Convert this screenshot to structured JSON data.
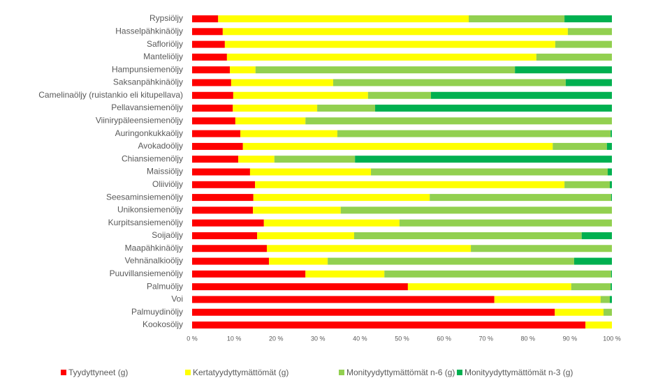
{
  "chart_data": {
    "type": "stacked_bar_horizontal_percent",
    "categories": [
      "Rypsiöljy",
      "Hasselpähkinäöljy",
      "Safloriöljy",
      "Manteliöljy",
      "Hampunsiemenöljy",
      "Saksanpähkinäöljy",
      "Camelinaöljy (ruistankio eli kitupellava)",
      "Pellavansiemenöljy",
      "Viinirypäleensiemenöljy",
      "Auringonkukkaöljy",
      "Avokadoöljy",
      "Chiansiemenöljy",
      "Maissiöljy",
      "Oliiviöljy",
      "Seesaminsiemenöljy",
      "Unikonsiemenöljy",
      "Kurpitsansiemenöljy",
      "Soijaöljy",
      "Maapähkinäöljy",
      "Vehnänalkioöljy",
      "Puuvillansiemenöljy",
      "Palmuöljy",
      "Voi",
      "Palmuydinöljy",
      "Kookosöljy"
    ],
    "series": [
      {
        "name": "Tyydyttyneet (g)",
        "color": "#ff0000",
        "values": [
          6.2,
          7.3,
          7.8,
          8.3,
          9,
          9.3,
          9.8,
          9.7,
          10.3,
          11.5,
          12.1,
          11,
          13.8,
          15,
          14.6,
          14.5,
          17.1,
          15.5,
          17.8,
          18.3,
          27,
          51.4,
          72,
          86.4,
          93.7
        ]
      },
      {
        "name": "Kertatyydyttymättömät (g)",
        "color": "#ffff00",
        "values": [
          59.7,
          82.2,
          78.7,
          73.7,
          6.1,
          24.3,
          32.1,
          20.1,
          16.7,
          23.1,
          73.8,
          8.6,
          28.8,
          73.7,
          42,
          20.9,
          32.3,
          23.1,
          48.6,
          14,
          18.8,
          38.9,
          25.3,
          11.6,
          6.3
        ]
      },
      {
        "name": "Monityydyttymättömät n-6 (g)",
        "color": "#92d050",
        "values": [
          22.8,
          10.5,
          13.5,
          18,
          61.8,
          55.4,
          15,
          13.8,
          73,
          65.1,
          12.9,
          19.2,
          56.4,
          10.8,
          43.2,
          64.6,
          50.6,
          54.2,
          33.6,
          58.7,
          54,
          9.4,
          2.2,
          2,
          0
        ]
      },
      {
        "name": "Monityydyttymättömät n-3 (g)",
        "color": "#00b050",
        "values": [
          11.3,
          0,
          0,
          0,
          23.1,
          11,
          43.1,
          56.4,
          0,
          0.3,
          1.2,
          61.2,
          1,
          0.5,
          0.2,
          0,
          0,
          7.2,
          0,
          9,
          0.2,
          0.3,
          0.5,
          0,
          0
        ]
      }
    ],
    "xlim": [
      0,
      100
    ],
    "xticks": [
      {
        "value": 0,
        "label": "0 %"
      },
      {
        "value": 10,
        "label": "10 %"
      },
      {
        "value": 20,
        "label": "20 %"
      },
      {
        "value": 30,
        "label": "30 %"
      },
      {
        "value": 40,
        "label": "40 %"
      },
      {
        "value": 50,
        "label": "50 %"
      },
      {
        "value": 60,
        "label": "60 %"
      },
      {
        "value": 70,
        "label": "70 %"
      },
      {
        "value": 80,
        "label": "80 %"
      },
      {
        "value": 90,
        "label": "90 %"
      },
      {
        "value": 100,
        "label": "100 %"
      }
    ],
    "grid": false,
    "legend": "bottom"
  }
}
